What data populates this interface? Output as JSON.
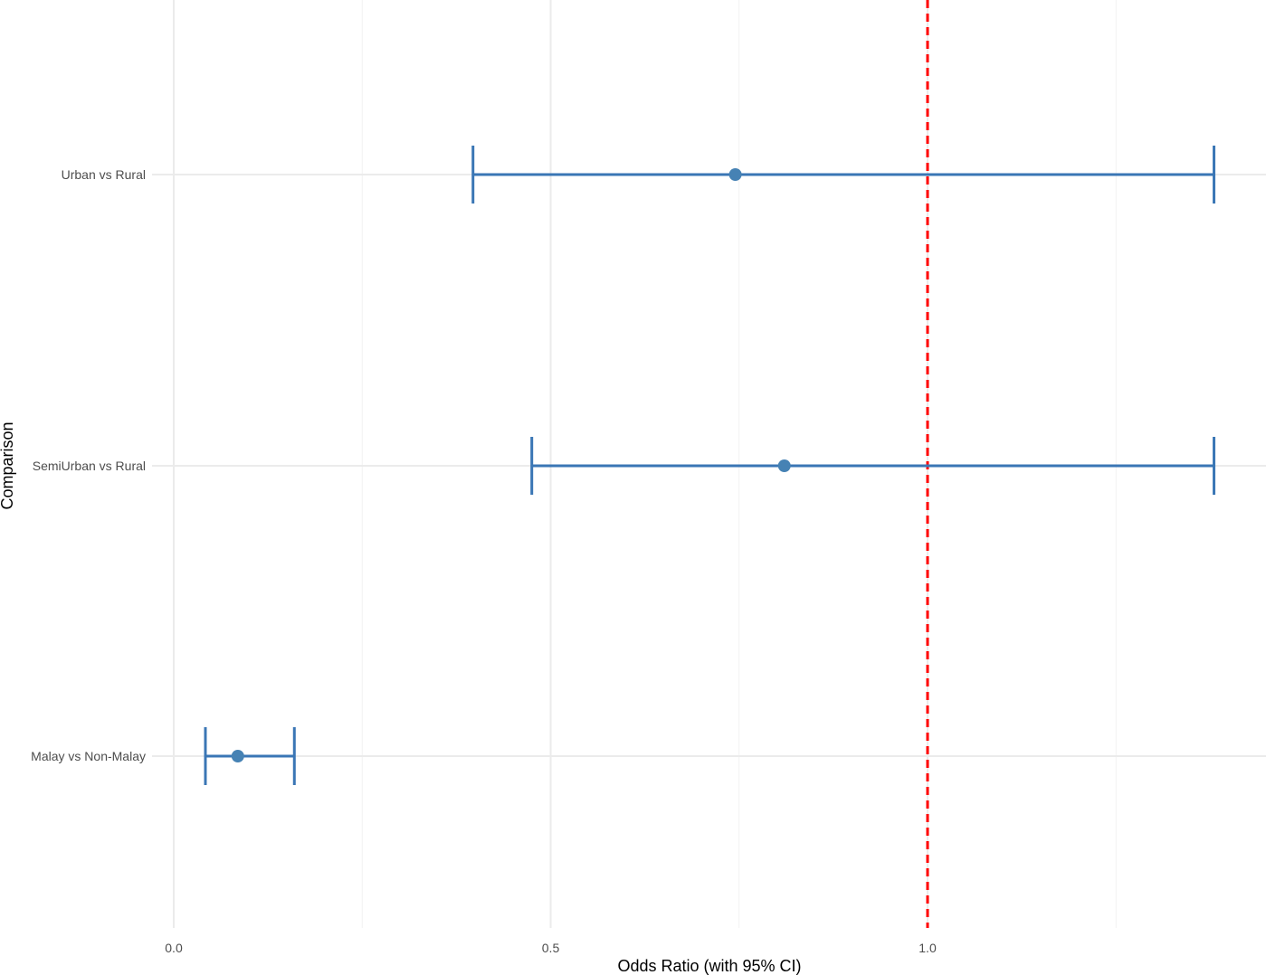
{
  "chart_data": {
    "type": "forest",
    "title": "",
    "xlabel": "Odds Ratio (with 95% CI)",
    "ylabel": "Comparison",
    "xlim": [
      -0.02,
      1.45
    ],
    "x_ticks": [
      0.0,
      0.5,
      1.0
    ],
    "x_tick_labels": [
      "0.0",
      "0.5",
      "1.0"
    ],
    "x_minor_ticks": [
      0.25,
      0.75,
      1.25
    ],
    "reference_line": {
      "x": 1.0,
      "style": "dashed",
      "color": "#ff0000"
    },
    "grid": true,
    "legend": "none",
    "point_color": "#4682b4",
    "bar_color": "#3a76b5",
    "categories": [
      "Urban vs Rural",
      "SemiUrban vs Rural",
      "Malay vs Non-Malay"
    ],
    "estimates": [
      0.745,
      0.81,
      0.085
    ],
    "lower": [
      0.397,
      0.475,
      0.042
    ],
    "upper": [
      1.38,
      1.38,
      0.16
    ]
  }
}
